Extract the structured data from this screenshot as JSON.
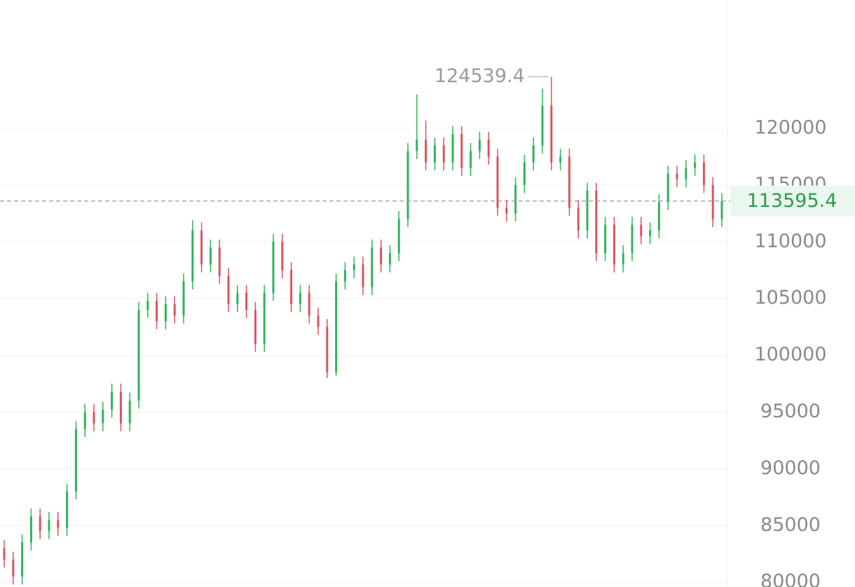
{
  "chart_data": {
    "type": "candlestick",
    "open": [
      83000,
      82000,
      80500,
      83500,
      85800,
      84500,
      85500,
      84800,
      88000,
      93500,
      95000,
      94000,
      95200,
      96800,
      94000,
      96000,
      104000,
      104800,
      103000,
      104500,
      103500,
      106500,
      111000,
      108000,
      109500,
      107000,
      104500,
      105500,
      104000,
      101000,
      105500,
      110000,
      107500,
      104500,
      105500,
      103500,
      102500,
      98500,
      106500,
      107500,
      108000,
      106000,
      109500,
      108000,
      109000,
      112000,
      118000,
      119000,
      117000,
      118500,
      117000,
      119500,
      116500,
      118000,
      119000,
      117500,
      113000,
      112500,
      115000,
      117000,
      118500,
      122000,
      117000,
      117500,
      113000,
      111000,
      114500,
      109000,
      111500,
      108000,
      109000,
      111500,
      110500,
      111000,
      113500,
      116000,
      115500,
      116500,
      117000,
      115000,
      112000
    ],
    "high": [
      83700,
      82700,
      84200,
      86500,
      86500,
      86200,
      86200,
      88700,
      94200,
      95700,
      95700,
      95900,
      97500,
      97500,
      96700,
      104700,
      105500,
      105500,
      105200,
      105200,
      107200,
      111900,
      111700,
      110200,
      110200,
      107700,
      106200,
      106200,
      104700,
      106200,
      110700,
      110700,
      108200,
      106200,
      106200,
      104200,
      103200,
      107200,
      108200,
      108700,
      108700,
      110200,
      110200,
      109700,
      112700,
      118700,
      123000,
      120700,
      119200,
      119200,
      120200,
      120200,
      118700,
      119700,
      119700,
      118200,
      113700,
      115700,
      117700,
      119200,
      123500,
      124539.4,
      118200,
      118200,
      113700,
      115200,
      115200,
      112200,
      112200,
      109700,
      112200,
      112200,
      111700,
      114200,
      116700,
      116700,
      117200,
      117700,
      117700,
      115700,
      114300
    ],
    "low": [
      81300,
      79800,
      79800,
      82800,
      83800,
      83800,
      84100,
      84100,
      87300,
      92800,
      93300,
      93300,
      94500,
      93300,
      93300,
      95300,
      103300,
      102300,
      102300,
      102800,
      102800,
      105800,
      107300,
      107300,
      106300,
      103800,
      103800,
      103300,
      100300,
      100300,
      104800,
      106800,
      103800,
      103800,
      102800,
      101800,
      98000,
      98200,
      105800,
      106800,
      105300,
      105300,
      107300,
      107300,
      108300,
      111300,
      117300,
      116300,
      116300,
      116300,
      116300,
      115800,
      115800,
      117300,
      116800,
      112300,
      111800,
      111800,
      114300,
      116300,
      117800,
      116300,
      116300,
      112300,
      110300,
      110300,
      108300,
      108300,
      107300,
      107300,
      108300,
      109800,
      109800,
      110300,
      112800,
      114800,
      114800,
      115800,
      114300,
      111300,
      111300
    ],
    "close": [
      82000,
      80500,
      83500,
      85800,
      84500,
      85500,
      84800,
      88000,
      93500,
      95000,
      94000,
      95200,
      96800,
      94000,
      96000,
      104000,
      104800,
      103000,
      104500,
      103500,
      106500,
      111000,
      108000,
      109500,
      107000,
      104500,
      105500,
      104000,
      101000,
      105500,
      110000,
      107500,
      104500,
      105500,
      103500,
      102500,
      98500,
      106500,
      107500,
      108000,
      106000,
      109500,
      108000,
      109000,
      112000,
      118000,
      119000,
      117000,
      118500,
      117000,
      119500,
      116500,
      118000,
      119000,
      117500,
      113000,
      112500,
      115000,
      117000,
      118500,
      122000,
      117000,
      117500,
      113000,
      111000,
      114500,
      109000,
      111500,
      108000,
      109000,
      111500,
      110500,
      111000,
      113500,
      116000,
      115500,
      116500,
      117000,
      115000,
      112000,
      113595.4
    ],
    "up_color": "#2fb35c",
    "down_color": "#d9545e",
    "ylim": [
      79580,
      131310
    ],
    "yticks": [
      80000,
      85000,
      90000,
      95000,
      100000,
      105000,
      110000,
      115000,
      120000
    ],
    "grid": true,
    "max_annotation": 124539.4,
    "last_price": 113595.4
  }
}
